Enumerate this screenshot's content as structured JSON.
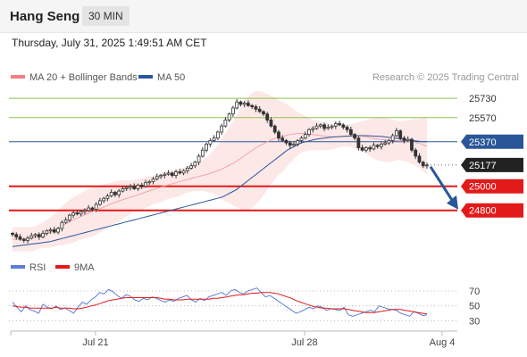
{
  "header": {
    "title": "Hang Seng",
    "timeframe": "30 MIN",
    "datetime": "Thursday, July 31, 2025 1:49:51 AM CET"
  },
  "legend": {
    "bollinger": {
      "label": "MA 20 + Bollinger Bands",
      "color": "#f08080"
    },
    "ma50": {
      "label": "MA 50",
      "color": "#2a5699"
    },
    "credit": "Research © 2025 Trading Central"
  },
  "rsi_legend": {
    "rsi": {
      "label": "RSI",
      "color": "#5b7fd6"
    },
    "ma9": {
      "label": "9MA",
      "color": "#e21a1a"
    }
  },
  "chart_data": [
    {
      "type": "candlestick",
      "ylim": [
        24450,
        25820
      ],
      "x_labels": [
        "Jul 21",
        "Jul 28",
        "Aug 4"
      ],
      "levels": [
        {
          "value": 25730,
          "label": "25730",
          "style": "resistance",
          "color": "#8bc34a"
        },
        {
          "value": 25570,
          "label": "25570",
          "style": "resistance",
          "color": "#8bc34a"
        },
        {
          "value": 25370,
          "label": "25370",
          "style": "pivot",
          "color": "#2a5699"
        },
        {
          "value": 25177,
          "label": "25177",
          "style": "last",
          "color": "#222222"
        },
        {
          "value": 25000,
          "label": "25000",
          "style": "support",
          "color": "#e21a1a"
        },
        {
          "value": 24800,
          "label": "24800",
          "style": "support",
          "color": "#e21a1a"
        }
      ],
      "arrow": {
        "from": 25177,
        "to": 24800,
        "color": "#2a5699"
      },
      "series": [
        {
          "name": "price",
          "key": "closes",
          "values": [
            24600,
            24580,
            24560,
            24550,
            24570,
            24590,
            24600,
            24580,
            24610,
            24630,
            24640,
            24620,
            24650,
            24700,
            24720,
            24760,
            24780,
            24770,
            24790,
            24800,
            24820,
            24810,
            24850,
            24880,
            24900,
            24920,
            24950,
            24930,
            24960,
            24980,
            24990,
            25000,
            24980,
            25010,
            25000,
            25030,
            25040,
            25060,
            25080,
            25090,
            25100,
            25110,
            25090,
            25120,
            25110,
            25130,
            25150,
            25170,
            25200,
            25250,
            25300,
            25350,
            25380,
            25400,
            25450,
            25500,
            25550,
            25600,
            25650,
            25700,
            25680,
            25690,
            25670,
            25660,
            25640,
            25620,
            25600,
            25550,
            25500,
            25450,
            25400,
            25380,
            25360,
            25340,
            25350,
            25380,
            25400,
            25430,
            25470,
            25480,
            25500,
            25510,
            25480,
            25490,
            25500,
            25520,
            25510,
            25490,
            25470,
            25430,
            25400,
            25320,
            25300,
            25320,
            25310,
            25340,
            25330,
            25350,
            25360,
            25380,
            25420,
            25460,
            25400,
            25380,
            25390,
            25300,
            25250,
            25200,
            25170,
            25177
          ]
        },
        {
          "name": "MA 20",
          "key": "ma20",
          "values": [
            24560,
            24562,
            24563,
            24566,
            24569,
            24576,
            24589,
            24601,
            24617,
            24637,
            24659,
            24680,
            24701,
            24721,
            24738,
            24755,
            24772,
            24787,
            24802,
            24818,
            24834,
            24852,
            24866,
            24880,
            24893,
            24905,
            24918,
            24930,
            24943,
            24957,
            24969,
            24982,
            24994,
            25006,
            25017,
            25029,
            25040,
            25050,
            25060,
            25071,
            25081,
            25091,
            25102,
            25114,
            25128,
            25144,
            25163,
            25183,
            25205,
            25231,
            25260,
            25287,
            25313,
            25336,
            25356,
            25374,
            25391,
            25403,
            25412,
            25425,
            25432,
            25437,
            25439,
            25437,
            25432,
            25427,
            25422,
            25416,
            25412,
            25409,
            25411,
            25414,
            25418,
            25420,
            25420,
            25417,
            25410,
            25401,
            25394,
            25389,
            25387,
            25382,
            25380,
            25378,
            25377,
            25373,
            25368,
            25359,
            25348,
            25331
          ]
        },
        {
          "name": "BB upper",
          "key": "bb_up",
          "values": [
            24660,
            24660,
            24660,
            24660,
            24660,
            24670,
            24690,
            24710,
            24740,
            24770,
            24810,
            24850,
            24880,
            24910,
            24930,
            24950,
            24970,
            24990,
            25000,
            25010,
            25020,
            25030,
            25040,
            25050,
            25050,
            25050,
            25050,
            25060,
            25070,
            25080,
            25090,
            25100,
            25110,
            25120,
            25130,
            25140,
            25150,
            25160,
            25170,
            25180,
            25200,
            25220,
            25250,
            25290,
            25340,
            25400,
            25460,
            25520,
            25580,
            25650,
            25720,
            25760,
            25790,
            25790,
            25780,
            25760,
            25740,
            25720,
            25700,
            25680,
            25650,
            25620,
            25600,
            25580,
            25560,
            25550,
            25540,
            25530,
            25520,
            25510,
            25500,
            25500,
            25510,
            25520,
            25530,
            25540,
            25550,
            25560,
            25570,
            25570,
            25570,
            25560,
            25550,
            25540,
            25540,
            25550,
            25560,
            25560,
            25570,
            25580
          ]
        },
        {
          "name": "BB lower",
          "key": "bb_lo",
          "values": [
            24460,
            24460,
            24460,
            24460,
            24460,
            24470,
            24490,
            24490,
            24490,
            24500,
            24510,
            24510,
            24520,
            24530,
            24550,
            24560,
            24570,
            24580,
            24600,
            24620,
            24650,
            24670,
            24690,
            24710,
            24740,
            24760,
            24790,
            24800,
            24810,
            24830,
            24850,
            24860,
            24870,
            24890,
            24900,
            24910,
            24920,
            24940,
            24950,
            24960,
            24960,
            24960,
            24950,
            24940,
            24920,
            24890,
            24870,
            24850,
            24830,
            24810,
            24800,
            24810,
            24840,
            24880,
            24930,
            24990,
            25040,
            25090,
            25120,
            25170,
            25210,
            25250,
            25280,
            25290,
            25300,
            25300,
            25300,
            25300,
            25300,
            25310,
            25320,
            25330,
            25330,
            25320,
            25310,
            25290,
            25270,
            25240,
            25220,
            25210,
            25200,
            25200,
            25210,
            25220,
            25210,
            25200,
            25180,
            25160,
            25130,
            25100
          ]
        },
        {
          "name": "MA 50",
          "key": "ma50",
          "values": [
            24500,
            24505,
            24510,
            24515,
            24520,
            24525,
            24530,
            24535,
            24540,
            24550,
            24560,
            24570,
            24580,
            24590,
            24600,
            24610,
            24620,
            24630,
            24640,
            24650,
            24660,
            24670,
            24680,
            24690,
            24700,
            24710,
            24720,
            24730,
            24740,
            24750,
            24760,
            24770,
            24780,
            24790,
            24800,
            24810,
            24820,
            24830,
            24840,
            24850,
            24860,
            24870,
            24880,
            24890,
            24900,
            24910,
            24930,
            24950,
            24970,
            25000,
            25030,
            25060,
            25090,
            25120,
            25150,
            25180,
            25210,
            25240,
            25270,
            25300,
            25320,
            25340,
            25360,
            25370,
            25380,
            25390,
            25395,
            25400,
            25405,
            25410,
            25412,
            25414,
            25416,
            25418,
            25420,
            25420,
            25420,
            25418,
            25416,
            25414,
            25410,
            25405,
            25400,
            25395,
            25390,
            25385,
            25380,
            25375,
            25370,
            25370
          ]
        }
      ]
    },
    {
      "type": "line",
      "ylim": [
        22,
        82
      ],
      "ticks": [
        70,
        50,
        30
      ],
      "series": [
        {
          "name": "RSI",
          "key": "rsi",
          "values": [
            55,
            48,
            42,
            50,
            45,
            43,
            40,
            52,
            48,
            46,
            50,
            45,
            47,
            44,
            40,
            48,
            55,
            52,
            58,
            62,
            68,
            66,
            72,
            69,
            64,
            60,
            65,
            63,
            58,
            56,
            60,
            58,
            62,
            60,
            57,
            55,
            58,
            56,
            60,
            62,
            64,
            58,
            55,
            60,
            57,
            62,
            64,
            66,
            68,
            64,
            70,
            72,
            68,
            66,
            70,
            72,
            74,
            68,
            62,
            64,
            60,
            56,
            52,
            48,
            44,
            40,
            42,
            45,
            48,
            46,
            50,
            48,
            44,
            46,
            45,
            44,
            48,
            38,
            36,
            38,
            40,
            42,
            44,
            42,
            50,
            48,
            46,
            45,
            44,
            40,
            38,
            36,
            42,
            40,
            37,
            38
          ]
        },
        {
          "name": "9MA",
          "key": "rsi_ma",
          "values": [
            50,
            49,
            48,
            48,
            47,
            47,
            47,
            47,
            47,
            47,
            48,
            47,
            47,
            47,
            46,
            46,
            47,
            48,
            50,
            51,
            53,
            55,
            57,
            58,
            59,
            60,
            61,
            61,
            61,
            61,
            61,
            61,
            61,
            61,
            60,
            59,
            59,
            58,
            58,
            58,
            59,
            59,
            59,
            59,
            59,
            59,
            60,
            60,
            61,
            62,
            63,
            64,
            65,
            65,
            66,
            67,
            67,
            68,
            68,
            68,
            67,
            66,
            64,
            62,
            60,
            57,
            55,
            53,
            51,
            49,
            48,
            47,
            47,
            46,
            46,
            46,
            46,
            45,
            44,
            43,
            42,
            41,
            41,
            41,
            42,
            43,
            44,
            45,
            45,
            45,
            44,
            43,
            42,
            41,
            40,
            39
          ]
        }
      ]
    }
  ]
}
